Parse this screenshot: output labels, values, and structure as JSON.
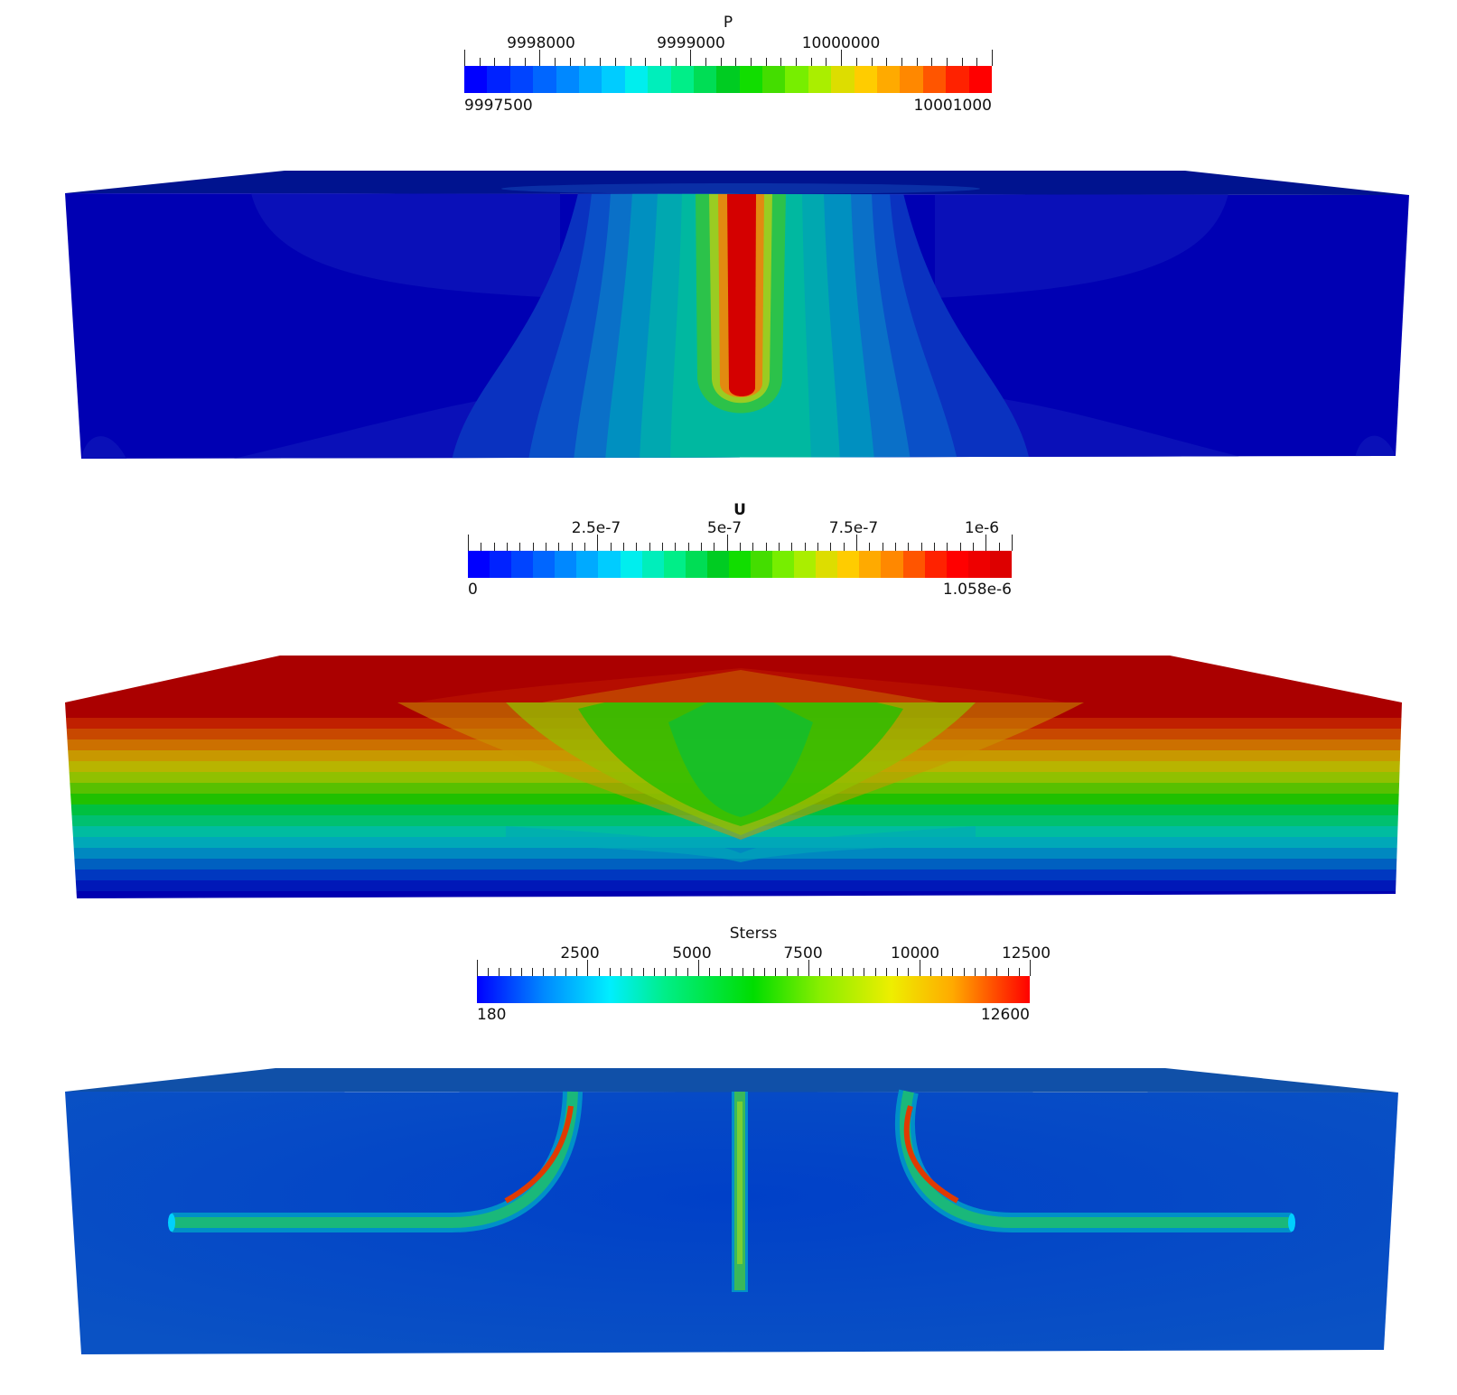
{
  "legends": {
    "p": {
      "title": "P",
      "tick_labels": [
        "9998000",
        "9999000",
        "10000000"
      ],
      "range_min": "9997500",
      "range_max": "10001000",
      "colors": [
        "#0000ff",
        "#0022ff",
        "#0044ff",
        "#0066ff",
        "#0088ff",
        "#00aaff",
        "#00ccff",
        "#00eeee",
        "#00eebb",
        "#00ee88",
        "#00dd55",
        "#00cc22",
        "#11dd00",
        "#44dd00",
        "#77ee00",
        "#aaee00",
        "#dddd00",
        "#ffcc00",
        "#ffaa00",
        "#ff8800",
        "#ff5500",
        "#ff2200",
        "#ff0000"
      ]
    },
    "u": {
      "title": "U",
      "tick_labels": [
        "2.5e-7",
        "5e-7",
        "7.5e-7",
        "1e-6"
      ],
      "range_min": "0",
      "range_max": "1.058e-6",
      "colors": [
        "#0000ff",
        "#0022ff",
        "#0044ff",
        "#0066ff",
        "#0088ff",
        "#00aaff",
        "#00ccff",
        "#00eeee",
        "#00eebb",
        "#00ee88",
        "#00dd55",
        "#00cc22",
        "#11dd00",
        "#44dd00",
        "#77ee00",
        "#aaee00",
        "#dddd00",
        "#ffcc00",
        "#ffaa00",
        "#ff8800",
        "#ff5500",
        "#ff2200",
        "#ff0000",
        "#ee0000",
        "#dd0000"
      ]
    },
    "stress": {
      "title": "Sterss",
      "tick_labels": [
        "2500",
        "5000",
        "7500",
        "10000",
        "12500"
      ],
      "range_min": "180",
      "range_max": "12600"
    }
  }
}
